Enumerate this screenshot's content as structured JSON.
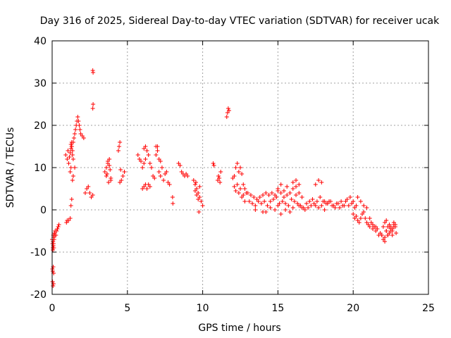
{
  "chart_data": {
    "type": "scatter",
    "title": "Day 316 of 2025, Sidereal Day-to-day VTEC variation (SDTVAR) for receiver ucak",
    "xlabel": "GPS time / hours",
    "ylabel": "SDTVAR / TECUs",
    "xlim": [
      0,
      25
    ],
    "ylim": [
      -20,
      40
    ],
    "xticks": [
      "0",
      "5",
      "10",
      "15",
      "20",
      "25"
    ],
    "yticks": [
      "-20",
      "-10",
      "0",
      "10",
      "20",
      "30",
      "40"
    ],
    "grid": true,
    "marker": "plus",
    "series_color": "#ff0000",
    "series": [
      {
        "name": "SDTVAR",
        "x": [
          0.0,
          0.03,
          0.05,
          0.08,
          0.1,
          0.13,
          0.15,
          0.18,
          0.2,
          0.25,
          0.3,
          0.35,
          0.4,
          0.45,
          0.02,
          0.04,
          0.07,
          0.1,
          0.03,
          0.06,
          0.09,
          0.05,
          0.08,
          0.11,
          0.06,
          0.09,
          0.9,
          1.0,
          1.05,
          1.1,
          1.15,
          1.2,
          1.25,
          1.3,
          1.35,
          1.4,
          1.45,
          1.5,
          1.55,
          1.6,
          1.65,
          1.7,
          1.75,
          1.8,
          1.85,
          0.95,
          1.0,
          1.1,
          1.2,
          1.25,
          1.3,
          1.35,
          1.4,
          1.5,
          1.2,
          1.25,
          1.3,
          1.35,
          1.4,
          1.3,
          1.25,
          1.9,
          2.0,
          2.1,
          2.2,
          2.3,
          2.4,
          2.5,
          2.6,
          2.7,
          2.7,
          2.72,
          2.7,
          2.72,
          3.5,
          3.6,
          3.7,
          3.8,
          3.9,
          3.65,
          3.75,
          3.85,
          3.7,
          3.8,
          3.6,
          3.9,
          4.4,
          4.45,
          4.5,
          4.55,
          4.6,
          4.7,
          4.8,
          4.5,
          5.7,
          5.8,
          5.9,
          6.0,
          6.1,
          6.2,
          6.3,
          6.4,
          6.5,
          6.6,
          6.7,
          6.8,
          6.9,
          7.0,
          7.1,
          7.2,
          7.3,
          7.4,
          7.5,
          7.6,
          7.7,
          7.8,
          6.0,
          6.1,
          6.2,
          6.3,
          6.4,
          6.5,
          6.1,
          6.2,
          6.9,
          7.0,
          7.1,
          7.2,
          8.0,
          8.02,
          8.4,
          8.5,
          8.6,
          8.7,
          8.8,
          8.9,
          9.0,
          9.4,
          9.5,
          9.6,
          9.7,
          9.8,
          9.9,
          10.0,
          9.5,
          9.6,
          9.7,
          9.8,
          9.55,
          9.75,
          10.7,
          10.75,
          11.0,
          11.1,
          11.2,
          11.05,
          11.15,
          11.6,
          11.65,
          11.7,
          11.75,
          12.0,
          12.1,
          12.2,
          12.3,
          12.4,
          12.5,
          12.6,
          12.7,
          12.8,
          12.9,
          12.1,
          12.2,
          12.3,
          12.4,
          12.5,
          12.6,
          12.7,
          12.8,
          13.0,
          13.2,
          13.4,
          13.6,
          13.8,
          14.0,
          14.2,
          14.4,
          14.6,
          14.8,
          15.0,
          15.2,
          15.4,
          15.6,
          15.8,
          16.0,
          16.2,
          16.4,
          16.6,
          16.8,
          17.0,
          17.2,
          17.4,
          17.6,
          17.8,
          18.0,
          18.2,
          18.4,
          18.6,
          18.8,
          19.0,
          19.2,
          19.4,
          19.6,
          19.8,
          20.0,
          20.2,
          13.1,
          13.3,
          13.5,
          13.7,
          13.9,
          14.1,
          14.3,
          14.5,
          14.7,
          14.9,
          15.1,
          15.3,
          15.5,
          15.7,
          15.9,
          16.1,
          16.3,
          16.5,
          16.7,
          16.9,
          17.1,
          17.3,
          17.5,
          17.7,
          17.9,
          18.1,
          18.3,
          18.5,
          18.7,
          18.9,
          19.1,
          19.3,
          19.5,
          19.7,
          19.9,
          20.1,
          13.5,
          14.0,
          14.5,
          15.0,
          15.5,
          16.0,
          14.2,
          14.8,
          15.2,
          15.8,
          15.0,
          15.2,
          15.4,
          15.6,
          15.8,
          16.0,
          16.2,
          16.4,
          16.2,
          16.4,
          16.6,
          17.5,
          17.7,
          17.9,
          18.1,
          18.3,
          20.0,
          20.1,
          20.2,
          20.3,
          20.4,
          20.5,
          20.6,
          20.7,
          20.8,
          20.9,
          21.0,
          21.1,
          21.2,
          21.3,
          21.4,
          21.5,
          21.6,
          21.7,
          21.8,
          21.9,
          20.3,
          20.5,
          20.7,
          20.9,
          21.1,
          21.3,
          21.5,
          21.9,
          22.0,
          22.1,
          22.2,
          22.3,
          22.4,
          22.5,
          22.6,
          22.7,
          22.8,
          22.85,
          22.0,
          22.1,
          22.2,
          22.3,
          22.4,
          22.5,
          22.6,
          22.7,
          22.8,
          22.1,
          22.3,
          22.5,
          22.7,
          22.2,
          22.4,
          22.6
        ],
        "y": [
          -7.0,
          -8.0,
          -9.5,
          -6.0,
          -6.5,
          -7.0,
          -5.5,
          -6.0,
          -5.0,
          -6.0,
          -5.0,
          -4.5,
          -4.0,
          -3.5,
          -14.0,
          -14.5,
          -13.5,
          -15.0,
          -17.0,
          -18.0,
          -17.5,
          -9.0,
          -8.5,
          -9.0,
          -7.5,
          -8.0,
          13.0,
          12.0,
          14.0,
          11.0,
          12.5,
          9.0,
          10.0,
          15.0,
          14.0,
          16.0,
          17.0,
          18.0,
          19.0,
          20.0,
          21.0,
          22.0,
          21.0,
          20.0,
          19.0,
          -3.0,
          -2.5,
          -2.5,
          -2.0,
          1.0,
          2.5,
          7.0,
          8.0,
          10.0,
          13.5,
          14.5,
          15.0,
          13.0,
          12.0,
          16.0,
          15.5,
          18.0,
          17.5,
          17.0,
          4.0,
          5.0,
          5.5,
          4.0,
          3.0,
          3.5,
          33.0,
          32.5,
          24.0,
          25.0,
          9.0,
          10.0,
          11.0,
          12.0,
          7.0,
          8.5,
          6.5,
          9.5,
          11.5,
          10.5,
          8.0,
          7.5,
          14.0,
          15.0,
          16.0,
          9.5,
          7.0,
          8.0,
          9.0,
          6.5,
          13.0,
          12.0,
          11.5,
          10.0,
          11.0,
          12.0,
          14.0,
          13.0,
          11.0,
          10.0,
          8.0,
          7.5,
          15.0,
          14.0,
          9.0,
          8.0,
          10.0,
          7.0,
          8.5,
          9.0,
          6.5,
          6.0,
          5.0,
          5.5,
          6.0,
          5.0,
          6.0,
          5.5,
          14.5,
          15.0,
          13.0,
          15.0,
          12.0,
          11.5,
          3.0,
          1.5,
          11.0,
          10.5,
          9.0,
          8.5,
          8.0,
          8.5,
          8.0,
          7.0,
          6.0,
          5.0,
          4.0,
          3.0,
          2.0,
          1.0,
          4.5,
          3.5,
          2.5,
          5.5,
          6.5,
          -0.5,
          11.0,
          10.5,
          7.0,
          7.5,
          9.0,
          8.0,
          6.5,
          22.0,
          23.0,
          24.0,
          23.5,
          7.5,
          8.0,
          10.0,
          11.0,
          9.0,
          10.0,
          8.5,
          6.0,
          5.0,
          4.0,
          5.5,
          4.5,
          6.0,
          4.0,
          5.0,
          3.0,
          3.5,
          2.0,
          4.0,
          3.5,
          3.0,
          2.5,
          3.0,
          3.5,
          4.0,
          3.5,
          4.0,
          3.5,
          4.5,
          4.0,
          3.0,
          3.5,
          4.0,
          5.0,
          5.5,
          1.0,
          0.5,
          0.0,
          0.5,
          1.0,
          1.5,
          2.0,
          3.0,
          2.0,
          1.5,
          2.0,
          1.0,
          0.5,
          1.5,
          2.0,
          1.0,
          2.5,
          3.0,
          2.0,
          1.0,
          2.0,
          1.5,
          1.0,
          2.0,
          1.5,
          2.0,
          1.0,
          2.0,
          2.5,
          3.0,
          1.5,
          2.0,
          1.5,
          1.0,
          2.5,
          2.0,
          1.5,
          1.0,
          0.5,
          1.5,
          2.0,
          2.5,
          1.0,
          0.5,
          1.0,
          0.0,
          1.5,
          2.0,
          1.0,
          1.5,
          0.5,
          1.0,
          2.0,
          1.0,
          1.5,
          0.5,
          0.0,
          -0.5,
          0.5,
          1.0,
          0.0,
          0.5,
          -0.5,
          0.0,
          -1.0,
          -0.5,
          5.0,
          6.0,
          4.5,
          5.5,
          4.0,
          6.5,
          7.0,
          6.0,
          3.5,
          4.0,
          3.0,
          6.0,
          7.0,
          6.5,
          2.0,
          1.5,
          -1.0,
          -2.0,
          -1.5,
          -2.5,
          -3.0,
          -2.0,
          -1.0,
          -0.5,
          -2.0,
          -3.0,
          -3.5,
          -4.0,
          -3.0,
          -4.5,
          -4.0,
          -5.0,
          -4.5,
          -6.0,
          -5.5,
          -6.0,
          3.0,
          2.0,
          1.0,
          0.5,
          -2.0,
          -3.5,
          -4.0,
          -6.0,
          -7.0,
          -6.5,
          -5.0,
          -4.0,
          -3.5,
          -4.5,
          -5.0,
          -4.0,
          -3.5,
          -5.5,
          -4.0,
          -3.0,
          -5.0,
          -6.0,
          -5.5,
          -4.0,
          -4.5,
          -3.5,
          -4.0,
          -7.5,
          -6.0,
          -5.0,
          -3.0,
          -2.5,
          -4.0,
          -6.0
        ]
      }
    ]
  }
}
